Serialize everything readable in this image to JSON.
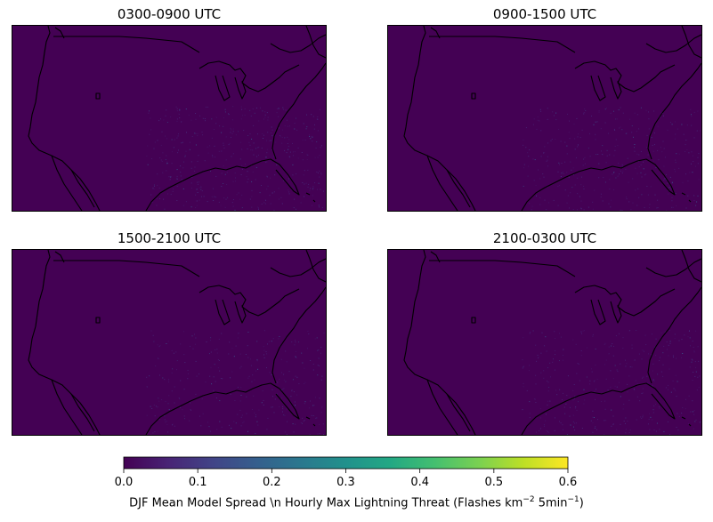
{
  "panels": [
    {
      "title": "0300-0900 UTC",
      "spread_level": 0.05
    },
    {
      "title": "0900-1500 UTC",
      "spread_level": 0.04
    },
    {
      "title": "1500-2100 UTC",
      "spread_level": 0.035
    },
    {
      "title": "2100-0300 UTC",
      "spread_level": 0.04
    }
  ],
  "colorbar": {
    "colormap": "viridis",
    "range": [
      0.0,
      0.6
    ],
    "ticks": [
      "0.0",
      "0.1",
      "0.2",
      "0.3",
      "0.4",
      "0.5",
      "0.6"
    ],
    "label_text": "DJF Mean Model Spread \\n Hourly Max Lightning Threat (Flashes km",
    "label_exp1": "−2",
    "label_mid": " 5min",
    "label_exp2": "−1",
    "label_end": ")"
  },
  "colors": {
    "background": "#440154",
    "coast": "#000000"
  }
}
